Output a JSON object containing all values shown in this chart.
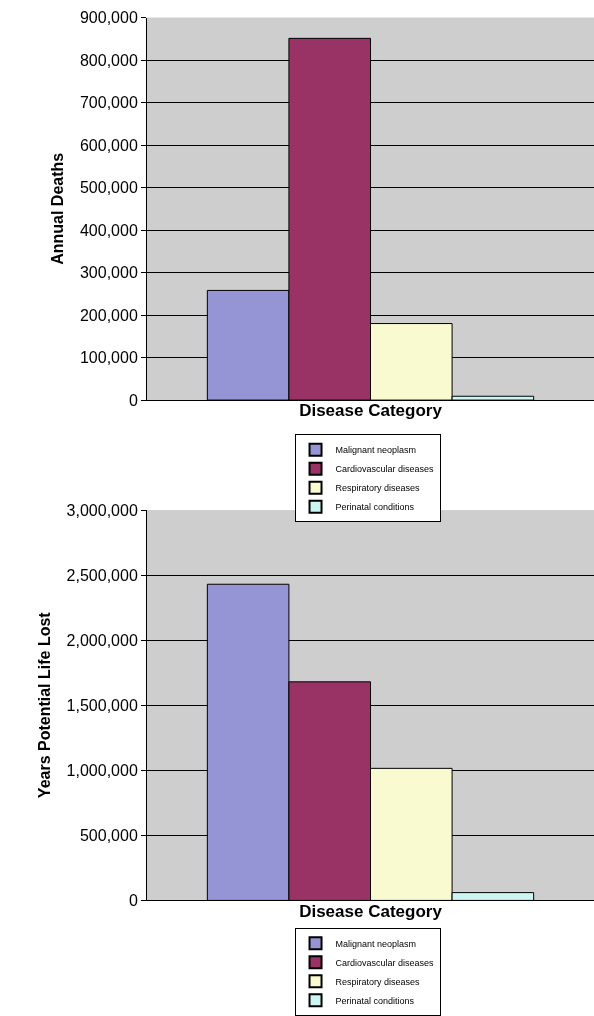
{
  "chart_data": [
    {
      "type": "bar",
      "categories": [
        null
      ],
      "xlabel": "Disease Category",
      "ylabel": "Annual Deaths",
      "legend": "bottom",
      "grid": "y",
      "tick_labels": "y",
      "ylim": [
        0,
        900000
      ],
      "yticks": [
        0,
        {
          "value": 100000,
          "label": "100,000"
        },
        {
          "value": 200000,
          "label": "200,000"
        },
        {
          "value": 300000,
          "label": "300,000"
        },
        {
          "value": 400000,
          "label": "400,000"
        },
        {
          "value": 500000,
          "label": "500,000"
        },
        {
          "value": 600000,
          "label": "600,000"
        },
        {
          "value": 700000,
          "label": "700,000"
        },
        {
          "value": 800000,
          "label": "800,000"
        },
        {
          "value": 900000,
          "label": "900,000"
        }
      ],
      "series": [
        {
          "name": "Malignant neoplasm",
          "color": "#9595d5",
          "values": [
            258000
          ]
        },
        {
          "name": "Cardiovascular diseases",
          "color": "#993366",
          "values": [
            851000
          ]
        },
        {
          "name": "Respiratory diseases",
          "color": "#fafad0",
          "values": [
            180000
          ]
        },
        {
          "name": "Perinatal conditions",
          "color": "#ccf6f4",
          "values": [
            9000
          ]
        }
      ]
    },
    {
      "type": "bar",
      "categories": [
        null
      ],
      "xlabel": "Disease Category",
      "ylabel": "Years Potential Life Lost",
      "legend": "bottom",
      "grid": "y",
      "tick_labels": "y",
      "ylim": [
        0,
        3000000
      ],
      "yticks": [
        0,
        {
          "value": 500000,
          "label": "500,000"
        },
        {
          "value": 1000000,
          "label": "1,000,000"
        },
        {
          "value": 1500000,
          "label": "1,500,000"
        },
        {
          "value": 2000000,
          "label": "2,000,000"
        },
        {
          "value": 2500000,
          "label": "2,500,000"
        },
        {
          "value": 3000000,
          "label": "3,000,000"
        }
      ],
      "series": [
        {
          "name": "Malignant neoplasm",
          "color": "#9595d5",
          "values": [
            2430000
          ]
        },
        {
          "name": "Cardiovascular diseases",
          "color": "#993366",
          "values": [
            1680000
          ]
        },
        {
          "name": "Respiratory diseases",
          "color": "#fafad0",
          "values": [
            1015000
          ]
        },
        {
          "name": "Perinatal conditions",
          "color": "#ccf6f4",
          "values": [
            60000
          ]
        }
      ]
    }
  ]
}
